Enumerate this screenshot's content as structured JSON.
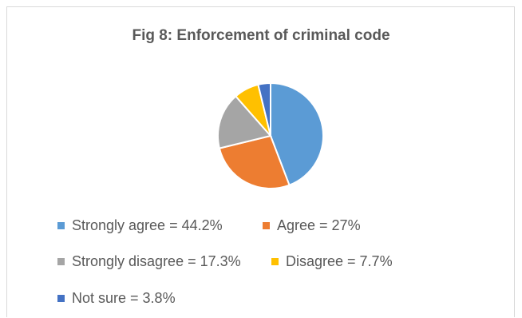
{
  "chart_data": {
    "type": "pie",
    "title": "Fig 8: Enforcement of criminal code",
    "slices": [
      {
        "label": "Strongly agree = 44.2%",
        "value": 44.2,
        "color": "#5b9bd5"
      },
      {
        "label": "Agree = 27%",
        "value": 27.0,
        "color": "#ed7d31"
      },
      {
        "label": "Strongly disagree = 17.3%",
        "value": 17.3,
        "color": "#a5a5a5"
      },
      {
        "label": "Disagree = 7.7%",
        "value": 7.7,
        "color": "#ffc000"
      },
      {
        "label": "Not sure = 3.8%",
        "value": 3.8,
        "color": "#4472c4"
      }
    ],
    "legend_position": "bottom"
  }
}
